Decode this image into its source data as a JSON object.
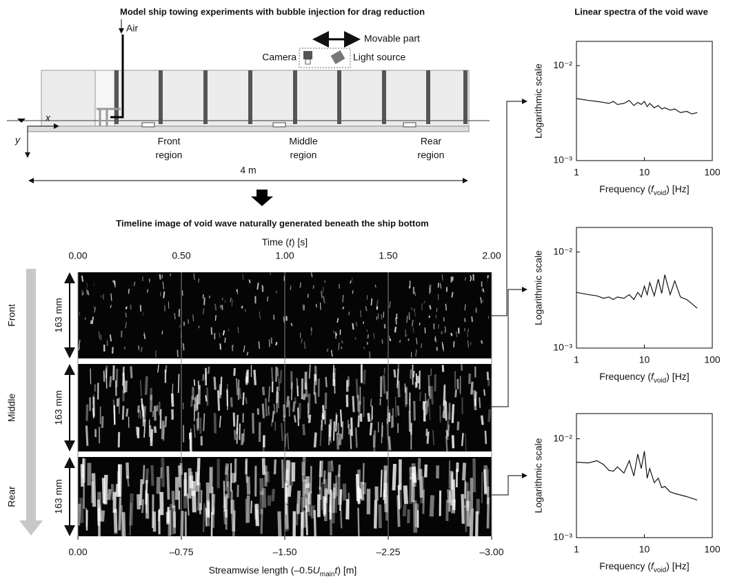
{
  "diagram": {
    "title": "Model ship towing experiments with bubble injection for drag reduction",
    "air": "Air",
    "movable": "Movable part",
    "camera": "Camera",
    "light": "Light source",
    "x_axis": "x",
    "y_axis": "y",
    "regions": [
      [
        "Front",
        "region"
      ],
      [
        "Middle",
        "region"
      ],
      [
        "Rear",
        "region"
      ]
    ],
    "length": "4 m"
  },
  "timeline": {
    "title": "Timeline image of void wave naturally generated beneath the ship bottom",
    "top_label": [
      "Time (",
      "t",
      ") [s]"
    ],
    "top_lim": [
      0,
      2
    ],
    "top_ticks": [
      {
        "value": 0,
        "label": "0.00"
      },
      {
        "value": 0.5,
        "label": "0.50"
      },
      {
        "value": 1,
        "label": "1.00"
      },
      {
        "value": 1.5,
        "label": "1.50"
      },
      {
        "value": 2,
        "label": "2.00"
      }
    ],
    "bottom_label": [
      "Streamwise length (–0.5",
      "U",
      "main",
      "t",
      ") [m]"
    ],
    "bottom_lim": [
      0,
      -3
    ],
    "bottom_ticks": [
      {
        "value": 0,
        "label": "0.00"
      },
      {
        "value": -0.75,
        "label": "–0.75"
      },
      {
        "value": -1.5,
        "label": "–1.50"
      },
      {
        "value": -2.25,
        "label": "–2.25"
      },
      {
        "value": -3,
        "label": "–3.00"
      }
    ],
    "rows": [
      {
        "name": "Front",
        "height": "163 mm"
      },
      {
        "name": "Middle",
        "height": "163 mm"
      },
      {
        "name": "Rear",
        "height": "163 mm"
      }
    ]
  },
  "spectra_title": "Linear spectra of the void wave",
  "chart_data": [
    {
      "type": "line",
      "ylabel": "Logarithmic scale",
      "xlabel": [
        "Frequency (",
        "f",
        "void",
        ") [Hz]"
      ],
      "log_x": true,
      "log_y": true,
      "color": "#111111",
      "xlim": [
        1,
        100
      ],
      "ylim": [
        0.001,
        0.018
      ],
      "xticks": [
        1,
        10,
        100
      ],
      "yticks": [
        {
          "value": 0.001,
          "label": "10⁻³"
        },
        {
          "value": 0.01,
          "label": "10⁻²"
        }
      ],
      "x": [
        1,
        1.5,
        2,
        2.5,
        3,
        3.5,
        4,
        5,
        6,
        7,
        8,
        9,
        10,
        11,
        12,
        14,
        16,
        18,
        20,
        24,
        28,
        34,
        42,
        50,
        60
      ],
      "values": [
        0.0045,
        0.0043,
        0.0042,
        0.0041,
        0.004,
        0.0042,
        0.0039,
        0.004,
        0.0043,
        0.0038,
        0.0041,
        0.0039,
        0.0042,
        0.0037,
        0.004,
        0.0036,
        0.0038,
        0.0035,
        0.0036,
        0.0034,
        0.0035,
        0.0032,
        0.0033,
        0.0031,
        0.0032
      ]
    },
    {
      "type": "line",
      "ylabel": "Logarithmic scale",
      "xlabel": [
        "Frequency (",
        "f",
        "void",
        ") [Hz]"
      ],
      "log_x": true,
      "log_y": true,
      "color": "#111111",
      "xlim": [
        1,
        100
      ],
      "ylim": [
        0.001,
        0.018
      ],
      "xticks": [
        1,
        10,
        100
      ],
      "yticks": [
        {
          "value": 0.001,
          "label": "10⁻³"
        },
        {
          "value": 0.01,
          "label": "10⁻²"
        }
      ],
      "x": [
        1,
        1.5,
        2,
        2.5,
        3,
        3.5,
        4,
        5,
        6,
        7,
        8,
        9,
        10,
        11,
        12,
        14,
        16,
        18,
        20,
        24,
        28,
        34,
        42,
        50,
        60
      ],
      "values": [
        0.0038,
        0.0036,
        0.0035,
        0.0033,
        0.0034,
        0.0032,
        0.0034,
        0.0033,
        0.0036,
        0.0032,
        0.0038,
        0.0034,
        0.0044,
        0.0036,
        0.0048,
        0.0035,
        0.0052,
        0.0037,
        0.0058,
        0.0036,
        0.005,
        0.0034,
        0.0032,
        0.0029,
        0.0026
      ]
    },
    {
      "type": "line",
      "ylabel": "Logarithmic scale",
      "xlabel": [
        "Frequency (",
        "f",
        "void",
        ") [Hz]"
      ],
      "log_x": true,
      "log_y": true,
      "color": "#111111",
      "xlim": [
        1,
        100
      ],
      "ylim": [
        0.001,
        0.018
      ],
      "xticks": [
        1,
        10,
        100
      ],
      "yticks": [
        {
          "value": 0.001,
          "label": "10⁻³"
        },
        {
          "value": 0.01,
          "label": "10⁻²"
        }
      ],
      "x": [
        1,
        1.5,
        2,
        2.5,
        3,
        3.5,
        4,
        5,
        6,
        7,
        8,
        9,
        10,
        11,
        12,
        14,
        16,
        18,
        20,
        24,
        28,
        34,
        42,
        50,
        60
      ],
      "values": [
        0.0058,
        0.0057,
        0.006,
        0.0055,
        0.0048,
        0.0047,
        0.0052,
        0.0045,
        0.006,
        0.0042,
        0.007,
        0.005,
        0.0075,
        0.004,
        0.005,
        0.0036,
        0.004,
        0.0032,
        0.0033,
        0.0029,
        0.0028,
        0.0027,
        0.0026,
        0.0025,
        0.0024
      ]
    }
  ]
}
